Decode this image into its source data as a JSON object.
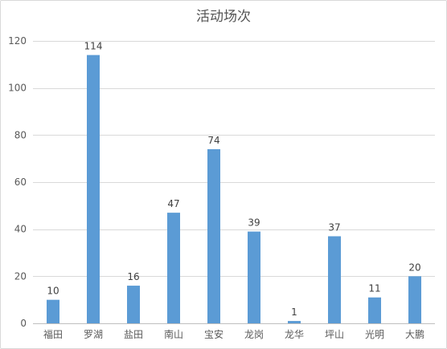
{
  "chart_data": {
    "type": "bar",
    "title": "活动场次",
    "xlabel": "",
    "ylabel": "",
    "categories": [
      "福田",
      "罗湖",
      "盐田",
      "南山",
      "宝安",
      "龙岗",
      "龙华",
      "坪山",
      "光明",
      "大鹏"
    ],
    "values": [
      10,
      114,
      16,
      47,
      74,
      39,
      1,
      37,
      11,
      20
    ],
    "ylim": [
      0,
      120
    ],
    "yticks": [
      0,
      20,
      40,
      60,
      80,
      100,
      120
    ],
    "grid": true,
    "legend": "none",
    "data_labels": true,
    "bar_color": "#5b9bd5"
  }
}
